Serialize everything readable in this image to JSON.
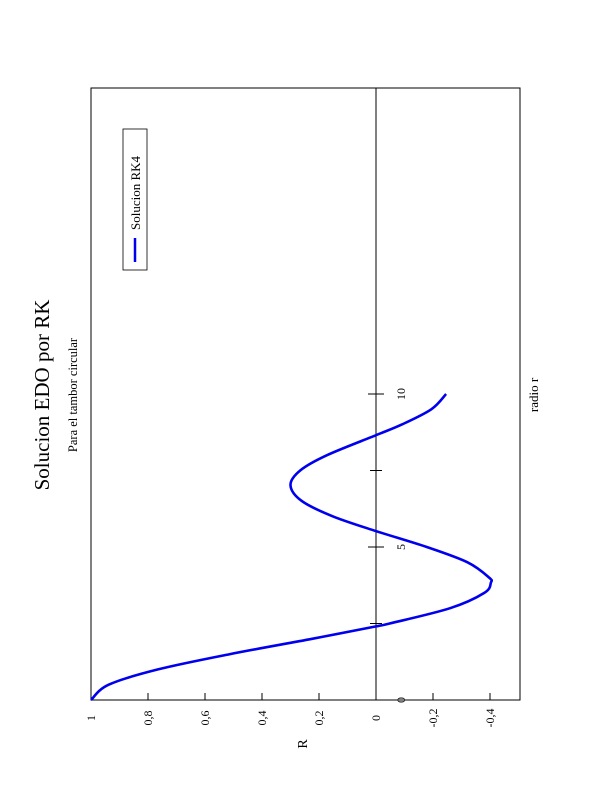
{
  "chart_data": {
    "type": "line",
    "orientation": "rotated-90-ccw",
    "title": "Solucion EDO por RK",
    "subtitle": "Para el tambor circular",
    "xlabel": "radio r",
    "ylabel": "R",
    "xlim": [
      0,
      10
    ],
    "ylim": [
      -0.45,
      1.0
    ],
    "x_ticks": [
      0,
      5,
      10
    ],
    "x_tick_labels": [
      "0",
      "5",
      "10"
    ],
    "y_ticks": [
      1,
      0.8,
      0.6,
      0.4,
      0.2,
      0,
      -0.2,
      -0.4
    ],
    "y_tick_labels": [
      "1",
      "0,8",
      "0,6",
      "0,4",
      "0,2",
      "0",
      "-0,2",
      "-0,4"
    ],
    "grid": false,
    "legend_position": "top-right",
    "series": [
      {
        "name": "Solucion RK4",
        "color": "#0000ee",
        "x": [
          0,
          0.5,
          1.0,
          1.5,
          2.0,
          2.405,
          2.5,
          3.0,
          3.5,
          3.832,
          4.0,
          4.5,
          5.0,
          5.52,
          6.0,
          6.5,
          7.016,
          7.5,
          8.0,
          8.654,
          9.0,
          9.5,
          10.0
        ],
        "y": [
          1.0,
          0.938,
          0.765,
          0.512,
          0.224,
          0.0,
          -0.048,
          -0.26,
          -0.38,
          -0.403,
          -0.397,
          -0.321,
          -0.178,
          0.0,
          0.151,
          0.26,
          0.3,
          0.266,
          0.172,
          0.0,
          -0.09,
          -0.194,
          -0.246
        ]
      }
    ]
  }
}
